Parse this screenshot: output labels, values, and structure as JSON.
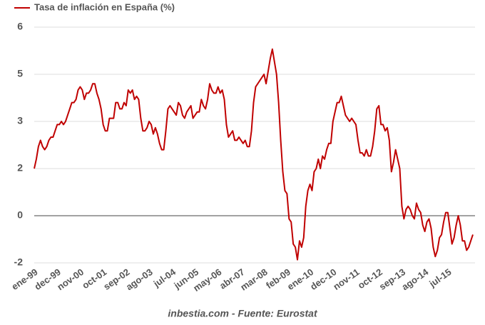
{
  "chart_data": {
    "type": "line",
    "legend": "top-left",
    "footer": "inbestia.com - Fuente: Eurostat",
    "grid": true,
    "ylim": [
      -1.5,
      6
    ],
    "yticks": [
      {
        "value": -1.5,
        "label": "-2"
      },
      0,
      {
        "value": 1.5,
        "label": "2"
      },
      3,
      {
        "value": 4.5,
        "label": "5"
      },
      6
    ],
    "categories": [
      "ene-99",
      null,
      null,
      null,
      null,
      null,
      null,
      null,
      null,
      null,
      null,
      "dec-99",
      null,
      null,
      null,
      null,
      null,
      null,
      null,
      null,
      null,
      null,
      "nov-00",
      null,
      null,
      null,
      null,
      null,
      null,
      null,
      null,
      null,
      null,
      "oct-01",
      null,
      null,
      null,
      null,
      null,
      null,
      null,
      null,
      null,
      null,
      "sep-02",
      null,
      null,
      null,
      null,
      null,
      null,
      null,
      null,
      null,
      null,
      "ago-03",
      null,
      null,
      null,
      null,
      null,
      null,
      null,
      null,
      null,
      null,
      "jul-04",
      null,
      null,
      null,
      null,
      null,
      null,
      null,
      null,
      null,
      null,
      "jun-05",
      null,
      null,
      null,
      null,
      null,
      null,
      null,
      null,
      null,
      null,
      "may-06",
      null,
      null,
      null,
      null,
      null,
      null,
      null,
      null,
      null,
      null,
      "abr-07",
      null,
      null,
      null,
      null,
      null,
      null,
      null,
      null,
      null,
      null,
      "mar-08",
      null,
      null,
      null,
      null,
      null,
      null,
      null,
      null,
      null,
      null,
      "feb-09",
      null,
      null,
      null,
      null,
      null,
      null,
      null,
      null,
      null,
      null,
      "ene-10",
      null,
      null,
      null,
      null,
      null,
      null,
      null,
      null,
      null,
      null,
      "dec-10",
      null,
      null,
      null,
      null,
      null,
      null,
      null,
      null,
      null,
      null,
      "nov-11",
      null,
      null,
      null,
      null,
      null,
      null,
      null,
      null,
      null,
      null,
      "oct-12",
      null,
      null,
      null,
      null,
      null,
      null,
      null,
      null,
      null,
      null,
      "sep-13",
      null,
      null,
      null,
      null,
      null,
      null,
      null,
      null,
      null,
      null,
      "ago-14",
      null,
      null,
      null,
      null,
      null,
      null,
      null,
      null,
      null,
      null,
      "jul-15",
      null,
      null,
      null,
      null,
      null,
      null,
      null,
      null,
      null,
      null,
      null,
      null
    ],
    "series": [
      {
        "name": "Tasa de inflación en España (%)",
        "color": "#c00000",
        "values": [
          1.5,
          1.8,
          2.2,
          2.4,
          2.2,
          2.1,
          2.2,
          2.4,
          2.5,
          2.5,
          2.7,
          2.9,
          2.9,
          3.0,
          2.9,
          3.0,
          3.2,
          3.4,
          3.6,
          3.6,
          3.7,
          4.0,
          4.1,
          4.0,
          3.7,
          3.9,
          3.9,
          4.0,
          4.2,
          4.2,
          3.9,
          3.7,
          3.4,
          2.9,
          2.7,
          2.7,
          3.1,
          3.1,
          3.1,
          3.6,
          3.6,
          3.4,
          3.4,
          3.6,
          3.5,
          4.0,
          3.9,
          4.0,
          3.7,
          3.8,
          3.7,
          3.1,
          2.7,
          2.7,
          2.8,
          3.0,
          2.9,
          2.6,
          2.8,
          2.6,
          2.3,
          2.1,
          2.1,
          2.7,
          3.4,
          3.5,
          3.4,
          3.3,
          3.2,
          3.6,
          3.5,
          3.2,
          3.1,
          3.3,
          3.4,
          3.5,
          3.1,
          3.2,
          3.3,
          3.3,
          3.7,
          3.5,
          3.4,
          3.7,
          4.2,
          4.0,
          3.9,
          3.9,
          4.1,
          3.9,
          4.0,
          3.7,
          2.9,
          2.5,
          2.6,
          2.7,
          2.4,
          2.4,
          2.5,
          2.4,
          2.3,
          2.4,
          2.2,
          2.2,
          2.7,
          3.6,
          4.1,
          4.2,
          4.3,
          4.4,
          4.5,
          4.2,
          4.6,
          5.0,
          5.3,
          4.9,
          4.5,
          3.6,
          2.4,
          1.4,
          0.8,
          0.7,
          -0.1,
          -0.2,
          -0.9,
          -1.0,
          -1.4,
          -0.8,
          -1.0,
          -0.7,
          0.3,
          0.8,
          1.0,
          0.8,
          1.4,
          1.5,
          1.8,
          1.5,
          1.9,
          1.8,
          2.1,
          2.3,
          2.3,
          3.0,
          3.3,
          3.6,
          3.6,
          3.8,
          3.5,
          3.2,
          3.1,
          3.0,
          3.1,
          3.0,
          2.9,
          2.4,
          2.0,
          2.0,
          1.9,
          2.1,
          1.9,
          1.9,
          2.2,
          2.7,
          3.4,
          3.5,
          2.9,
          2.9,
          2.7,
          2.8,
          2.4,
          1.4,
          1.7,
          2.1,
          1.8,
          1.5,
          0.3,
          -0.1,
          0.2,
          0.3,
          0.2,
          0.0,
          -0.1,
          0.4,
          0.2,
          0.1,
          -0.3,
          -0.5,
          -0.2,
          -0.1,
          -0.4,
          -1.0,
          -1.3,
          -1.1,
          -0.7,
          -0.6,
          -0.2,
          0.1,
          0.1,
          -0.4,
          -0.9,
          -0.7,
          -0.3,
          0.0,
          -0.3,
          -0.8,
          -0.8,
          -1.1,
          -1.0,
          -0.8,
          -0.6
        ]
      }
    ]
  }
}
